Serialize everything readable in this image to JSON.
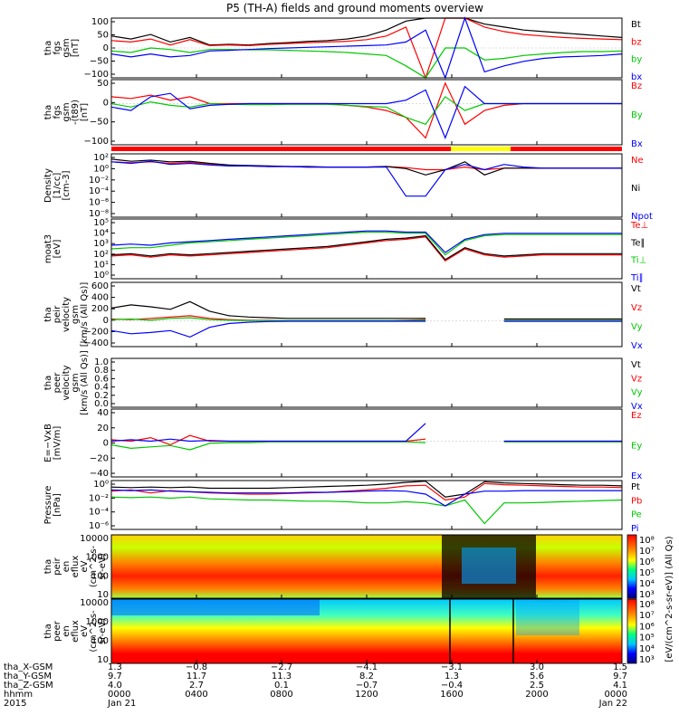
{
  "title": "P5 (TH-A) fields and ground moments overview",
  "colors": {
    "black": "#000000",
    "red": "#ff0000",
    "green": "#00c800",
    "blue": "#0000ff",
    "yellow": "#ffff00"
  },
  "chart_data": [
    {
      "id": "fgs_gsm",
      "type": "line",
      "ylabel_lines": [
        "tha",
        "fgs",
        "gsm",
        "[nT]"
      ],
      "yticks": [
        "100",
        "50",
        "0",
        "−50",
        "−100"
      ],
      "ylim": [
        -100,
        100
      ],
      "series": [
        {
          "name": "Bt",
          "color": "black",
          "values": [
            40,
            30,
            45,
            20,
            35,
            10,
            12,
            10,
            15,
            18,
            22,
            25,
            30,
            40,
            60,
            90,
            100,
            100,
            100,
            80,
            70,
            60,
            55,
            50,
            45,
            40,
            35
          ]
        },
        {
          "name": "bz",
          "color": "red",
          "values": [
            25,
            20,
            30,
            10,
            28,
            8,
            10,
            8,
            12,
            15,
            18,
            20,
            22,
            28,
            40,
            70,
            -100,
            100,
            100,
            70,
            55,
            45,
            40,
            35,
            32,
            30,
            28
          ]
        },
        {
          "name": "by",
          "color": "green",
          "values": [
            -10,
            -15,
            0,
            -5,
            -15,
            -5,
            -5,
            -6,
            -6,
            -8,
            -10,
            -12,
            -15,
            -20,
            -25,
            -60,
            -100,
            0,
            0,
            -40,
            -35,
            -25,
            -20,
            -15,
            -12,
            -12,
            -10
          ]
        },
        {
          "name": "bx",
          "color": "blue",
          "values": [
            -20,
            -30,
            -20,
            -30,
            -25,
            -10,
            -8,
            -5,
            -2,
            0,
            2,
            4,
            6,
            8,
            10,
            20,
            60,
            -100,
            100,
            -80,
            -60,
            -45,
            -35,
            -30,
            -28,
            -25,
            -20
          ]
        }
      ]
    },
    {
      "id": "fgs_gse",
      "type": "line",
      "ylabel_lines": [
        "tha",
        "fgs",
        "gsm",
        "-(t89)",
        "[nT]"
      ],
      "yticks": [
        "50",
        "0",
        "−50",
        "−100"
      ],
      "ylim": [
        -120,
        70
      ],
      "series": [
        {
          "name": "Bz",
          "color": "red",
          "values": [
            20,
            15,
            25,
            10,
            20,
            0,
            0,
            0,
            0,
            0,
            0,
            0,
            -5,
            -10,
            -20,
            -40,
            -100,
            60,
            -60,
            -20,
            -5,
            0,
            0,
            0,
            0,
            0,
            0
          ]
        },
        {
          "name": "By",
          "color": "green",
          "values": [
            0,
            -10,
            5,
            -5,
            -10,
            0,
            -2,
            -3,
            -3,
            -2,
            -2,
            -2,
            -5,
            -8,
            -10,
            -40,
            -60,
            20,
            -20,
            0,
            0,
            0,
            0,
            0,
            0,
            0,
            0
          ]
        },
        {
          "name": "Bx",
          "color": "blue",
          "values": [
            -10,
            -20,
            20,
            30,
            -15,
            -5,
            -2,
            0,
            0,
            0,
            0,
            0,
            0,
            0,
            0,
            10,
            40,
            -100,
            50,
            0,
            0,
            0,
            0,
            0,
            0,
            0,
            0
          ]
        }
      ]
    },
    {
      "id": "density",
      "type": "line",
      "log": true,
      "ylabel_lines": [
        "Density",
        "[1/cc]",
        "[cm-3]"
      ],
      "yticks": [
        "10²",
        "10⁰",
        "10⁻²",
        "10⁻⁴",
        "10⁻⁶",
        "10⁻⁸"
      ],
      "ylim_exp": [
        -9,
        3
      ],
      "series": [
        {
          "name": "Ne",
          "color": "red",
          "values": [
            1.5,
            1.3,
            1.5,
            1.2,
            1.4,
            1,
            0.8,
            0.7,
            0.6,
            0.6,
            0.5,
            0.5,
            0.5,
            0.5,
            0.6,
            0.4,
            0,
            0,
            0.5,
            0,
            0.3,
            0.3,
            0.3,
            0.3,
            0.3,
            0.3,
            0.3
          ]
        },
        {
          "name": "Ni",
          "color": "black",
          "values": [
            2,
            1.6,
            1.8,
            1.5,
            1.6,
            1.2,
            0.9,
            0.8,
            0.7,
            0.6,
            0.6,
            0.5,
            0.5,
            0.5,
            0.6,
            0.2,
            -1,
            0,
            1.5,
            -1,
            0.3,
            0.3,
            0.3,
            0.3,
            0.3,
            0.3,
            0.3
          ]
        },
        {
          "name": "Npot",
          "color": "blue",
          "values": [
            1.5,
            1.2,
            1.6,
            1.0,
            1.2,
            0.9,
            0.7,
            0.7,
            0.6,
            0.6,
            0.5,
            0.5,
            0.5,
            0.5,
            0.5,
            -5,
            -5,
            0,
            1,
            0,
            1,
            0.5,
            0.3,
            0.3,
            0.3,
            0.3,
            0.3
          ]
        }
      ]
    },
    {
      "id": "temperature",
      "type": "line",
      "log": true,
      "ylabel_lines": [
        "moat3",
        "[eV]"
      ],
      "yticks": [
        "10⁵",
        "10⁴",
        "10³",
        "10²",
        "10¹",
        "10⁰"
      ],
      "ylim_exp": [
        0,
        5
      ],
      "series": [
        {
          "name": "Te⊥",
          "color": "red",
          "values": [
            1.9,
            2.0,
            1.8,
            2.0,
            1.9,
            2.0,
            2.1,
            2.2,
            2.3,
            2.4,
            2.5,
            2.6,
            2.8,
            3.0,
            3.2,
            3.3,
            3.5,
            1.5,
            2.5,
            2.0,
            1.8,
            1.9,
            2.0,
            2.0,
            2.0,
            2.0,
            2.0
          ]
        },
        {
          "name": "Te∥",
          "color": "black",
          "values": [
            2.0,
            2.1,
            1.9,
            2.1,
            2.0,
            2.1,
            2.2,
            2.3,
            2.4,
            2.5,
            2.6,
            2.7,
            2.9,
            3.1,
            3.3,
            3.4,
            3.6,
            1.6,
            2.6,
            2.1,
            1.9,
            2.0,
            2.1,
            2.1,
            2.1,
            2.1,
            2.1
          ]
        },
        {
          "name": "Ti⊥",
          "color": "green",
          "values": [
            2.5,
            2.6,
            2.6,
            2.8,
            3.0,
            3.1,
            3.2,
            3.3,
            3.4,
            3.5,
            3.6,
            3.7,
            3.8,
            3.9,
            3.9,
            3.8,
            3.8,
            2.0,
            3.2,
            3.6,
            3.7,
            3.7,
            3.7,
            3.7,
            3.7,
            3.7,
            3.7
          ]
        },
        {
          "name": "Ti∥",
          "color": "blue",
          "values": [
            2.8,
            2.9,
            2.8,
            3.0,
            3.1,
            3.2,
            3.3,
            3.4,
            3.5,
            3.6,
            3.7,
            3.8,
            3.9,
            4.0,
            4.0,
            3.9,
            3.9,
            2.2,
            3.3,
            3.7,
            3.8,
            3.8,
            3.8,
            3.8,
            3.8,
            3.8,
            3.8
          ]
        }
      ]
    },
    {
      "id": "velocity_ion",
      "type": "line",
      "ylabel_lines": [
        "tha",
        "peir",
        "velocity",
        "gsm",
        "[km/s (All Qs)]"
      ],
      "yticks": [
        "600",
        "400",
        "200",
        "0",
        "−200",
        "−400"
      ],
      "ylim": [
        -400,
        600
      ],
      "gap_range": [
        16,
        20
      ],
      "series": [
        {
          "name": "Vt",
          "color": "black",
          "values": [
            200,
            250,
            220,
            180,
            300,
            150,
            80,
            60,
            50,
            40,
            40,
            40,
            40,
            40,
            40,
            40,
            40,
            null,
            null,
            null,
            30,
            30,
            30,
            30,
            30,
            30,
            30
          ]
        },
        {
          "name": "Vz",
          "color": "red",
          "values": [
            30,
            20,
            40,
            60,
            80,
            40,
            20,
            10,
            10,
            5,
            5,
            5,
            5,
            5,
            5,
            10,
            20,
            null,
            null,
            null,
            5,
            5,
            5,
            5,
            5,
            5,
            5
          ]
        },
        {
          "name": "Vy",
          "color": "green",
          "values": [
            20,
            30,
            10,
            40,
            50,
            20,
            10,
            5,
            5,
            5,
            5,
            5,
            5,
            5,
            5,
            5,
            10,
            null,
            null,
            null,
            5,
            5,
            5,
            5,
            5,
            5,
            5
          ]
        },
        {
          "name": "Vx",
          "color": "blue",
          "values": [
            -150,
            -200,
            -180,
            -150,
            -250,
            -100,
            -40,
            -20,
            -10,
            -5,
            -5,
            -5,
            -5,
            -5,
            -5,
            -5,
            -5,
            null,
            null,
            null,
            -5,
            -5,
            -5,
            -5,
            -5,
            -5,
            -5
          ]
        }
      ]
    },
    {
      "id": "velocity_elec",
      "type": "line",
      "ylabel_lines": [
        "tha",
        "peer",
        "velocity",
        "gsm",
        "[km/s (All Qs)]"
      ],
      "yticks": [
        "1.0",
        "0.8",
        "0.6",
        "0.4",
        "0.2",
        "0.0"
      ],
      "ylim": [
        0,
        1
      ],
      "series": [
        {
          "name": "Vt",
          "color": "black",
          "values": []
        },
        {
          "name": "Vz",
          "color": "red",
          "values": []
        },
        {
          "name": "Vy",
          "color": "green",
          "values": []
        },
        {
          "name": "Vx",
          "color": "blue",
          "values": []
        }
      ]
    },
    {
      "id": "efield",
      "type": "line",
      "ylabel_lines": [
        "E=−VxB",
        "[mV/m]"
      ],
      "yticks": [
        "40",
        "20",
        "0",
        "−20",
        "−40"
      ],
      "ylim": [
        -50,
        45
      ],
      "gap_range": [
        16,
        20
      ],
      "series": [
        {
          "name": "Ez",
          "color": "red",
          "values": [
            2,
            0,
            5,
            -5,
            8,
            0,
            0,
            0,
            0,
            0,
            0,
            0,
            0,
            0,
            0,
            0,
            3,
            null,
            null,
            null,
            0,
            0,
            0,
            0,
            0,
            0,
            0
          ]
        },
        {
          "name": "Ey",
          "color": "green",
          "values": [
            -5,
            -10,
            -8,
            -6,
            -12,
            -3,
            -2,
            -2,
            -1,
            -1,
            -1,
            -1,
            -1,
            -1,
            -1,
            -1,
            -2,
            null,
            null,
            null,
            -1,
            -1,
            -1,
            -1,
            -1,
            -1,
            -1
          ]
        },
        {
          "name": "Ex",
          "color": "blue",
          "values": [
            0,
            2,
            0,
            3,
            0,
            1,
            0,
            0,
            0,
            0,
            0,
            0,
            0,
            0,
            0,
            0,
            25,
            null,
            null,
            null,
            0,
            0,
            0,
            0,
            0,
            0,
            0
          ]
        }
      ]
    },
    {
      "id": "pressure",
      "type": "line",
      "log": true,
      "ylabel_lines": [
        "Pressure",
        "[nPa]"
      ],
      "yticks": [
        "10⁰",
        "10⁻²",
        "10⁻⁴",
        "10⁻⁶"
      ],
      "ylim_exp": [
        -7,
        1.3
      ],
      "series": [
        {
          "name": "Pt",
          "color": "black",
          "values": [
            0.2,
            0.1,
            0.2,
            0.1,
            0.2,
            0,
            0,
            0,
            0,
            0.1,
            0.2,
            0.3,
            0.4,
            0.5,
            0.7,
            1.0,
            1.2,
            -1.5,
            -1,
            1.1,
            0.9,
            0.8,
            0.7,
            0.6,
            0.5,
            0.5,
            0.4
          ]
        },
        {
          "name": "Pb",
          "color": "red",
          "values": [
            -0.5,
            -0.3,
            -0.8,
            -0.4,
            -0.6,
            -0.8,
            -0.9,
            -1.0,
            -1.0,
            -0.9,
            -0.8,
            -0.7,
            -0.5,
            -0.3,
            0,
            0.4,
            0.5,
            -2,
            -1.5,
            0.8,
            0.6,
            0.5,
            0.4,
            0.3,
            0.2,
            0.2,
            0.1
          ]
        },
        {
          "name": "Pe",
          "color": "green",
          "values": [
            -1.5,
            -1.6,
            -1.5,
            -1.7,
            -1.5,
            -1.8,
            -1.9,
            -2,
            -2,
            -2.1,
            -2.2,
            -2.2,
            -2.3,
            -2.5,
            -2.5,
            -2.3,
            -2.5,
            -3,
            -2,
            -6,
            -2.5,
            -2.5,
            -2.4,
            -2.3,
            -2.2,
            -2.1,
            -2
          ]
        },
        {
          "name": "Pi",
          "color": "blue",
          "values": [
            -0.3,
            -0.4,
            -0.3,
            -0.5,
            -0.6,
            -0.7,
            -0.8,
            -0.8,
            -0.8,
            -0.8,
            -0.7,
            -0.7,
            -0.6,
            -0.5,
            -0.4,
            -0.5,
            -1,
            -3,
            -1,
            -0.5,
            -0.5,
            -0.4,
            -0.4,
            -0.4,
            -0.4,
            -0.4,
            -0.4
          ]
        }
      ]
    },
    {
      "id": "ion_spec",
      "type": "heatmap",
      "ylabel_lines": [
        "tha",
        "peir",
        "en",
        "eflux",
        "eV",
        "(cm^2-s-",
        "sr-eV)"
      ],
      "yticks": [
        "10000",
        "1000",
        "100",
        "10"
      ]
    },
    {
      "id": "elec_spec",
      "type": "heatmap",
      "ylabel_lines": [
        "tha",
        "peer",
        "en",
        "eflux",
        "eV",
        "(cm^2-s-",
        "sr-eV)"
      ],
      "yticks": [
        "10000",
        "1000",
        "100",
        "10"
      ]
    }
  ],
  "colorbar": {
    "label": "[eV/(cm^2-s-sr-eV)] (All Qs)",
    "ticks_top": [
      "10⁸",
      "10⁷",
      "10⁶",
      "10⁵",
      "10⁴",
      "10³"
    ],
    "ticks_bottom": [
      "10⁸",
      "10⁷",
      "10⁶",
      "10⁵",
      "10⁴",
      "10³"
    ]
  },
  "footer": {
    "row_labels": [
      "tha_X-GSM",
      "tha_Y-GSM",
      "tha_Z-GSM",
      "hhmm",
      "2015"
    ],
    "columns": [
      {
        "vals": [
          "1.3",
          "9.7",
          "4.0",
          "0000",
          "Jan 21"
        ]
      },
      {
        "vals": [
          "−0.8",
          "11.7",
          "2.7",
          "0400",
          ""
        ]
      },
      {
        "vals": [
          "−2.7",
          "11.3",
          "0.1",
          "0800",
          ""
        ]
      },
      {
        "vals": [
          "−4.1",
          "8.2",
          "−0.7",
          "1200",
          ""
        ]
      },
      {
        "vals": [
          "−3.1",
          "1.3",
          "−0.4",
          "1600",
          ""
        ]
      },
      {
        "vals": [
          "3.0",
          "5.6",
          "2.5",
          "2000",
          ""
        ]
      },
      {
        "vals": [
          "1.5",
          "9.7",
          "4.1",
          "0000",
          "Jan 22"
        ]
      }
    ]
  }
}
